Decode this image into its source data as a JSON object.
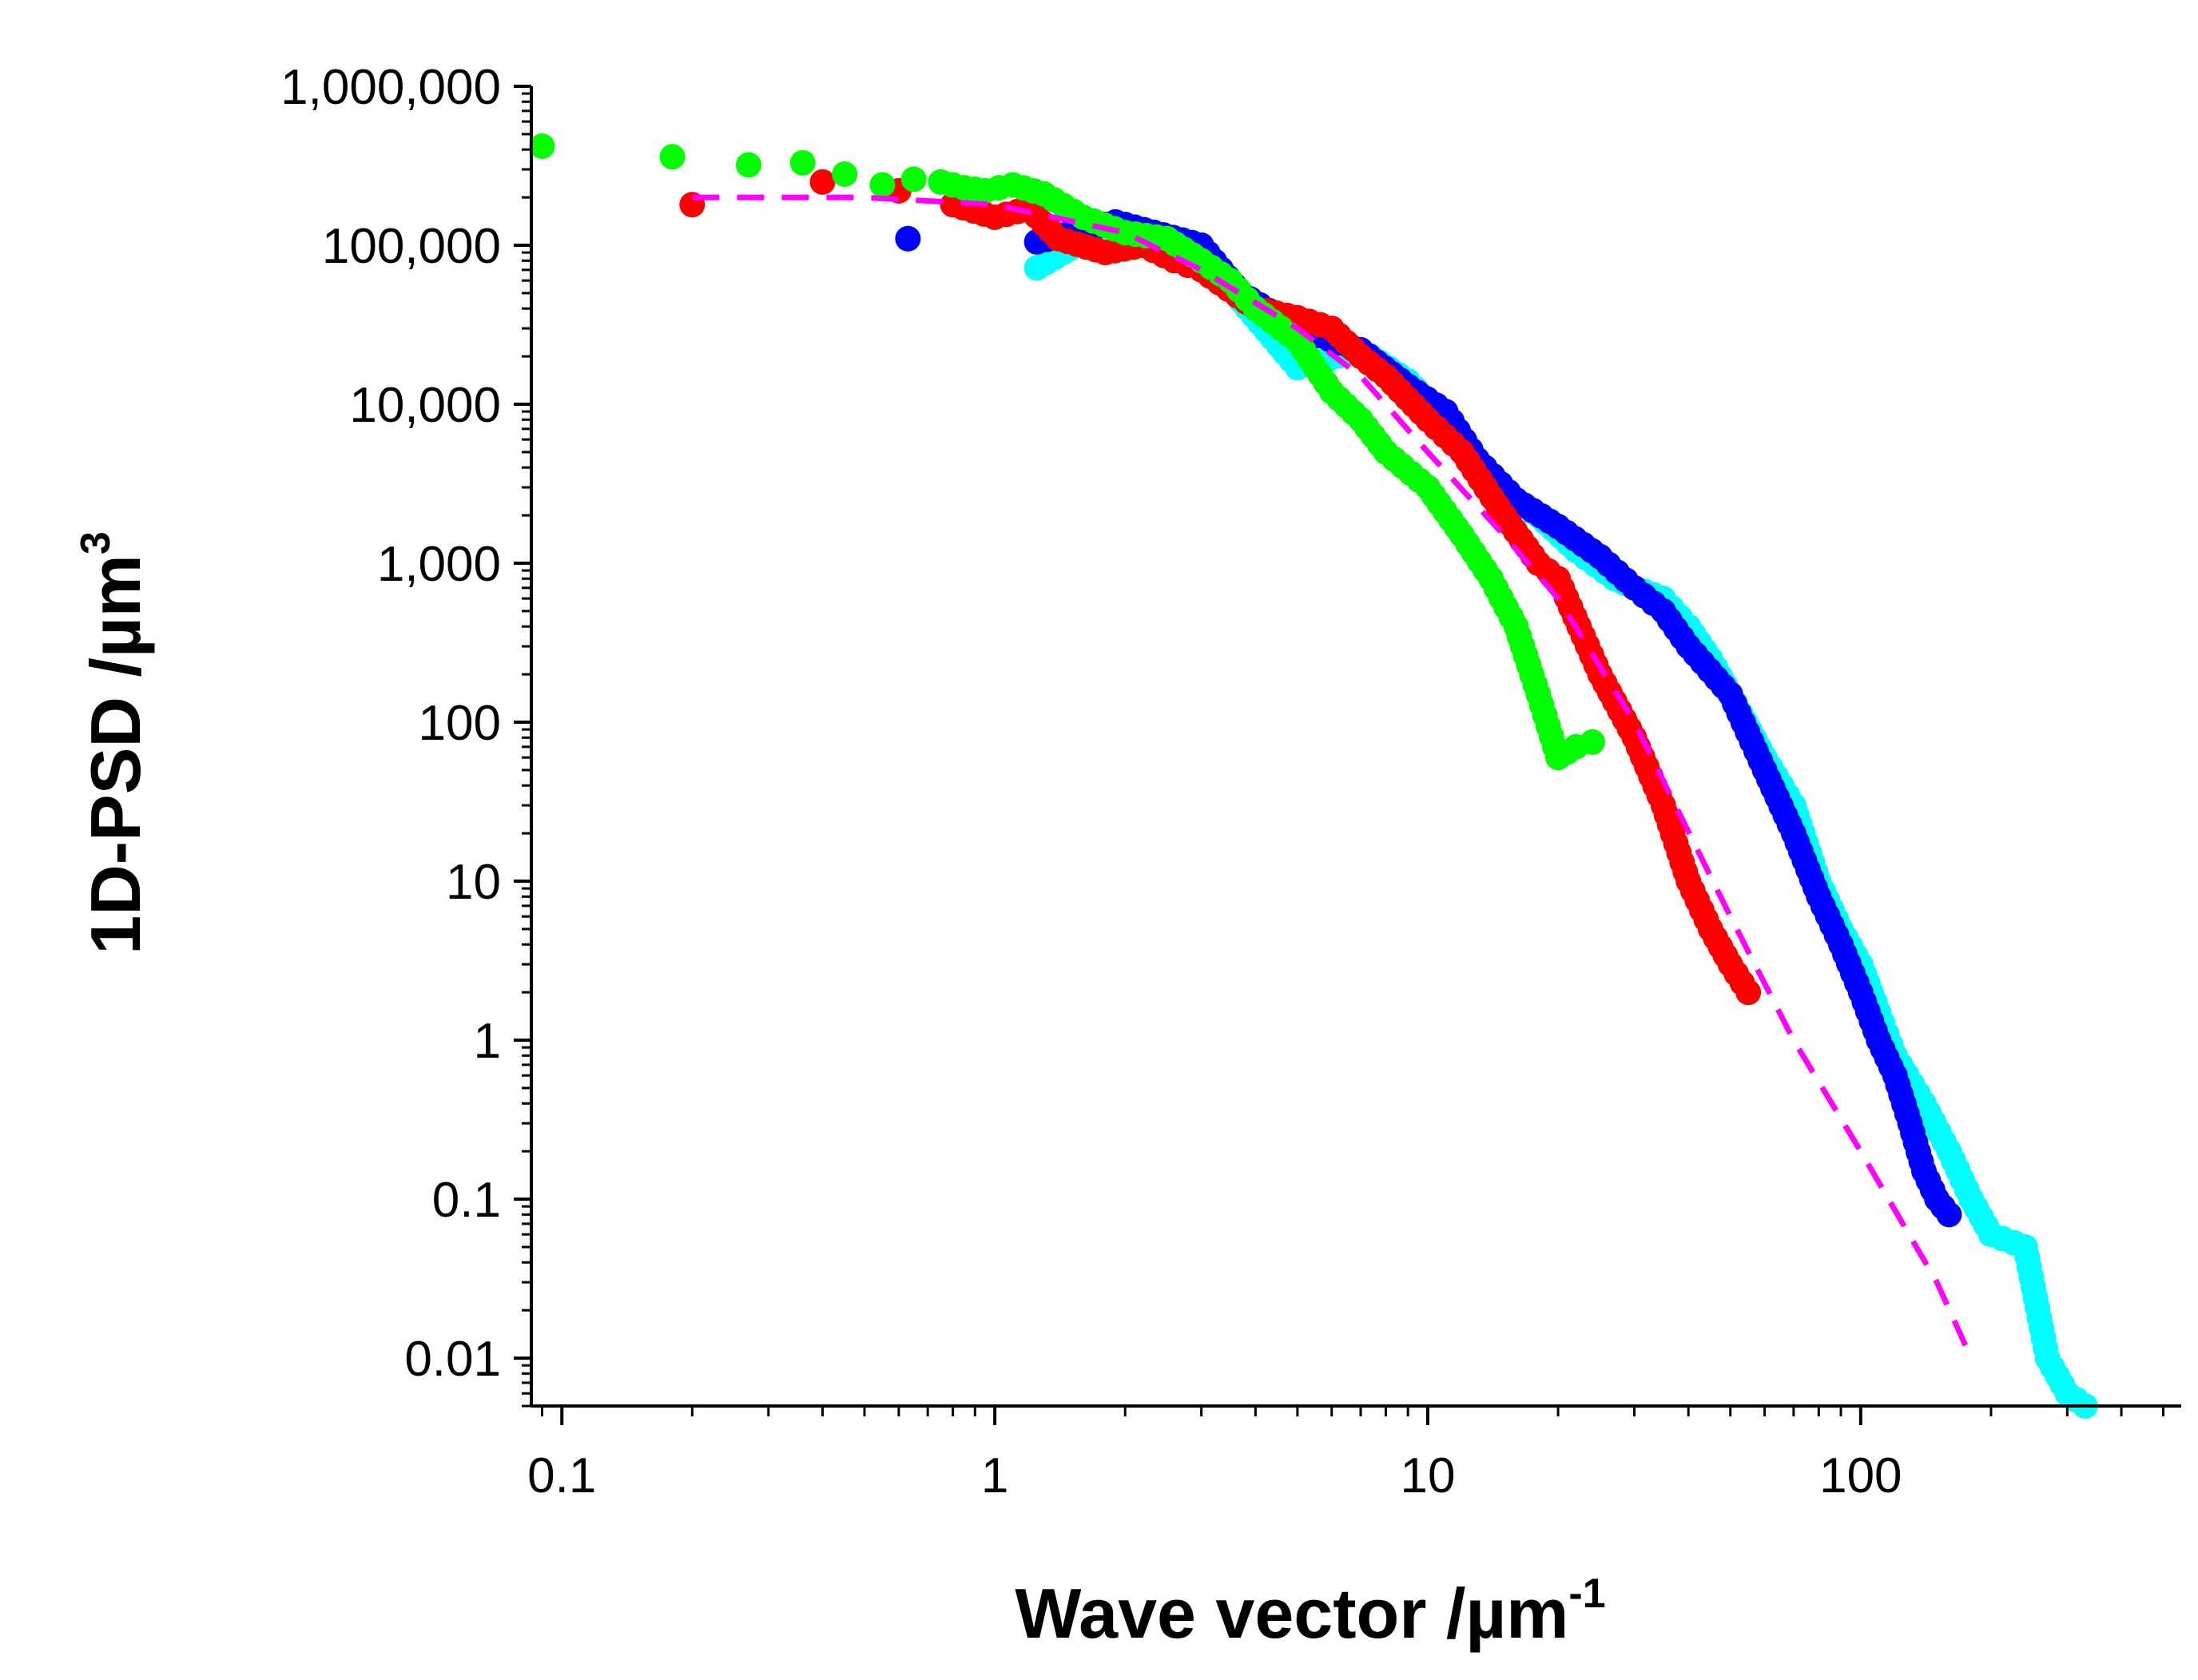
{
  "chart_data": {
    "type": "scatter",
    "title": "",
    "xlabel": "Wave vector /µm",
    "xlabel_sup": "-1",
    "ylabel": "1D-PSD /µm",
    "ylabel_sup": "3",
    "xscale": "log",
    "yscale": "log",
    "xlim": [
      0.085,
      550
    ],
    "ylim": [
      0.005,
      1000000
    ],
    "grid": false,
    "legend": "none",
    "x_ticks": [
      {
        "value": 0.1,
        "label": "0.1"
      },
      {
        "value": 1,
        "label": "1"
      },
      {
        "value": 10,
        "label": "10"
      },
      {
        "value": 100,
        "label": "100"
      }
    ],
    "y_ticks": [
      {
        "value": 1000000,
        "label": "1,000,000"
      },
      {
        "value": 100000,
        "label": "100,000"
      },
      {
        "value": 10000,
        "label": "10,000"
      },
      {
        "value": 1000,
        "label": "1,000"
      },
      {
        "value": 100,
        "label": "100"
      },
      {
        "value": 10,
        "label": "10"
      },
      {
        "value": 1,
        "label": "1"
      },
      {
        "value": 0.1,
        "label": "0.1"
      },
      {
        "value": 0.01,
        "label": "0.01"
      }
    ],
    "series": [
      {
        "color": "#00ffff",
        "marker": "circle",
        "points": [
          [
            0.63,
            110000
          ],
          [
            1.25,
            72000
          ],
          [
            1.9,
            140000
          ],
          [
            3.0,
            100000
          ],
          [
            3.7,
            45000
          ],
          [
            5.0,
            17000
          ],
          [
            7.0,
            22000
          ],
          [
            9.0,
            14000
          ],
          [
            12.0,
            6000
          ],
          [
            15.0,
            2500
          ],
          [
            18.0,
            2000
          ],
          [
            22.0,
            1200
          ],
          [
            27.0,
            800
          ],
          [
            30.0,
            700
          ],
          [
            35.0,
            600
          ],
          [
            40.0,
            400
          ],
          [
            45.0,
            250
          ],
          [
            50.0,
            150
          ],
          [
            60.0,
            60
          ],
          [
            70.0,
            30
          ],
          [
            80.0,
            10
          ],
          [
            90.0,
            5
          ],
          [
            100.0,
            3
          ],
          [
            110.0,
            1.5
          ],
          [
            120.0,
            0.8
          ],
          [
            140.0,
            0.4
          ],
          [
            160.0,
            0.2
          ],
          [
            180.0,
            0.1
          ],
          [
            200.0,
            0.06
          ],
          [
            240.0,
            0.05
          ],
          [
            270.0,
            0.01
          ],
          [
            300.0,
            0.006
          ],
          [
            330.0,
            0.005
          ]
        ]
      },
      {
        "color": "#0000ff",
        "marker": "circle",
        "points": [
          [
            0.63,
            110000
          ],
          [
            1.25,
            105000
          ],
          [
            1.9,
            140000
          ],
          [
            3.0,
            100000
          ],
          [
            3.7,
            50000
          ],
          [
            5.0,
            30000
          ],
          [
            7.0,
            22000
          ],
          [
            9.0,
            13000
          ],
          [
            11.0,
            9000
          ],
          [
            13.0,
            4500
          ],
          [
            16.0,
            2500
          ],
          [
            20.0,
            1700
          ],
          [
            25.0,
            1100
          ],
          [
            30.0,
            700
          ],
          [
            35.0,
            500
          ],
          [
            40.0,
            300
          ],
          [
            50.0,
            150
          ],
          [
            60.0,
            50
          ],
          [
            70.0,
            20
          ],
          [
            80.0,
            8
          ],
          [
            90.0,
            4
          ],
          [
            100.0,
            2
          ],
          [
            110.0,
            1
          ],
          [
            120.0,
            0.6
          ],
          [
            130.0,
            0.3
          ],
          [
            140.0,
            0.15
          ],
          [
            150.0,
            0.1
          ],
          [
            160.0,
            0.08
          ]
        ]
      },
      {
        "color": "#ff0000",
        "marker": "circle",
        "points": [
          [
            0.2,
            180000
          ],
          [
            0.4,
            250000
          ],
          [
            0.6,
            220000
          ],
          [
            0.8,
            180000
          ],
          [
            1.0,
            150000
          ],
          [
            1.2,
            170000
          ],
          [
            1.4,
            110000
          ],
          [
            1.8,
            90000
          ],
          [
            2.2,
            100000
          ],
          [
            2.6,
            80000
          ],
          [
            3.0,
            70000
          ],
          [
            4.0,
            40000
          ],
          [
            5.0,
            35000
          ],
          [
            6.0,
            30000
          ],
          [
            7.0,
            20000
          ],
          [
            8.0,
            15000
          ],
          [
            10.0,
            8000
          ],
          [
            12.0,
            5000
          ],
          [
            15.0,
            2000
          ],
          [
            18.0,
            1000
          ],
          [
            20.0,
            800
          ],
          [
            25.0,
            200
          ],
          [
            30.0,
            80
          ],
          [
            35.0,
            30
          ],
          [
            40.0,
            10
          ],
          [
            45.0,
            5
          ],
          [
            50.0,
            3
          ],
          [
            55.0,
            2
          ]
        ]
      },
      {
        "color": "#00ff00",
        "marker": "circle",
        "points": [
          [
            0.09,
            420000
          ],
          [
            0.18,
            360000
          ],
          [
            0.27,
            320000
          ],
          [
            0.36,
            330000
          ],
          [
            0.45,
            280000
          ],
          [
            0.55,
            240000
          ],
          [
            0.65,
            260000
          ],
          [
            0.75,
            250000
          ],
          [
            0.85,
            230000
          ],
          [
            0.95,
            220000
          ],
          [
            1.1,
            240000
          ],
          [
            1.3,
            210000
          ],
          [
            1.6,
            150000
          ],
          [
            2.0,
            120000
          ],
          [
            2.5,
            110000
          ],
          [
            3.0,
            80000
          ],
          [
            3.5,
            60000
          ],
          [
            4.0,
            40000
          ],
          [
            5.0,
            25000
          ],
          [
            6.0,
            12000
          ],
          [
            7.0,
            8000
          ],
          [
            8.0,
            5000
          ],
          [
            10.0,
            3000
          ],
          [
            12.0,
            1500
          ],
          [
            14.0,
            800
          ],
          [
            16.0,
            400
          ],
          [
            18.0,
            150
          ],
          [
            20.0,
            60
          ],
          [
            22.0,
            70
          ],
          [
            24.0,
            75
          ]
        ]
      },
      {
        "color": "#ff00ff",
        "marker": "dashed-line",
        "points": [
          [
            0.2,
            200000
          ],
          [
            0.5,
            200000
          ],
          [
            1.0,
            180000
          ],
          [
            2.0,
            120000
          ],
          [
            3.0,
            70000
          ],
          [
            5.0,
            30000
          ],
          [
            7.0,
            15000
          ],
          [
            10.0,
            5000
          ],
          [
            15.0,
            1500
          ],
          [
            20.0,
            600
          ],
          [
            30.0,
            100
          ],
          [
            50.0,
            6
          ],
          [
            70.0,
            1
          ],
          [
            100.0,
            0.2
          ],
          [
            150.0,
            0.03
          ],
          [
            180.0,
            0.01
          ]
        ]
      }
    ]
  }
}
